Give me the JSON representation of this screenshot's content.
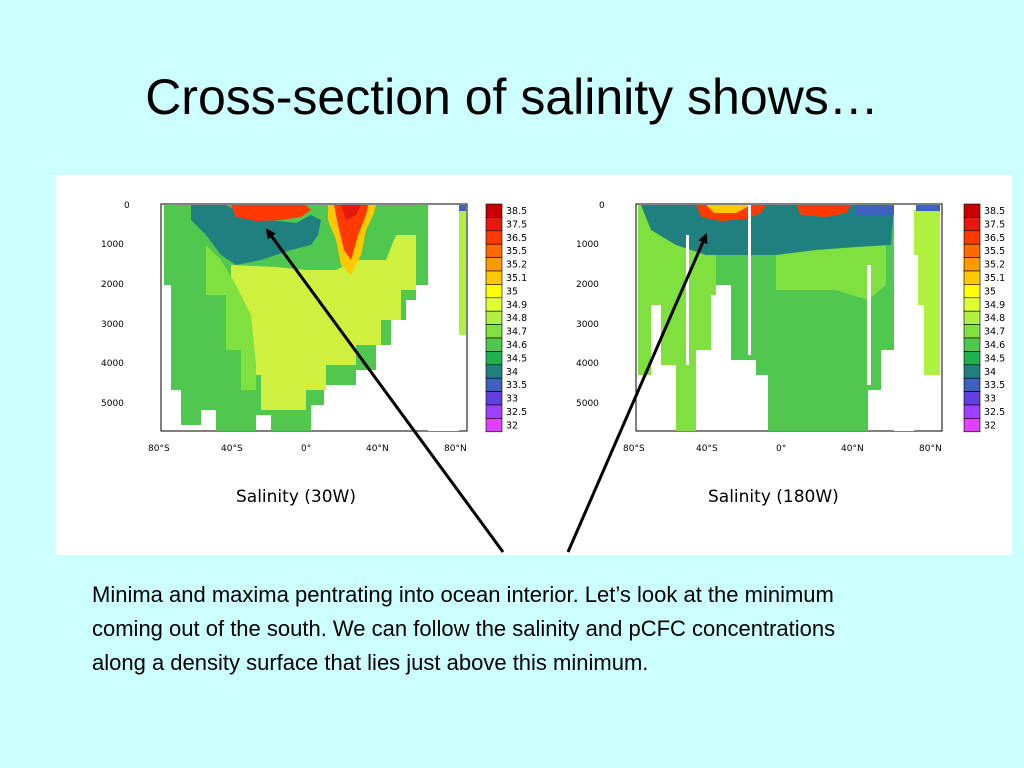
{
  "slide": {
    "title": "Cross-section of salinity shows…",
    "body": "Minima and maxima pentrating into ocean interior. Let’s look at the minimum coming out of the south. We can follow the salinity and pCFC concentrations along a density surface that lies just above this minimum."
  },
  "chart_data": [
    {
      "type": "heatmap",
      "title": "Salinity (30W)",
      "x_ticks": [
        "80°S",
        "40°S",
        "0°",
        "40°N",
        "80°N"
      ],
      "y_ticks": [
        "0",
        "1000",
        "2000",
        "3000",
        "4000",
        "5000"
      ],
      "ylim": [
        0,
        5600
      ],
      "colorbar": {
        "labels": [
          "38.5",
          "37.5",
          "36.5",
          "35.5",
          "35.2",
          "35.1",
          "35",
          "34.9",
          "34.8",
          "34.7",
          "34.6",
          "34.5",
          "34",
          "33.5",
          "33",
          "32.5",
          "32"
        ],
        "colors": [
          "#c80000",
          "#e81810",
          "#ff3a00",
          "#ff6a00",
          "#ff9a00",
          "#ffc800",
          "#ffff00",
          "#e0ff30",
          "#b0f040",
          "#80e040",
          "#50c850",
          "#20b050",
          "#208080",
          "#4060c0",
          "#6040e0",
          "#a040ff",
          "#e040ff"
        ]
      }
    },
    {
      "type": "heatmap",
      "title": "Salinity (180W)",
      "x_ticks": [
        "80°S",
        "40°S",
        "0°",
        "40°N",
        "80°N"
      ],
      "y_ticks": [
        "0",
        "1000",
        "2000",
        "3000",
        "4000",
        "5000"
      ],
      "ylim": [
        0,
        5600
      ],
      "colorbar": {
        "labels": [
          "38.5",
          "37.5",
          "36.5",
          "35.5",
          "35.2",
          "35.1",
          "35",
          "34.9",
          "34.8",
          "34.7",
          "34.6",
          "34.5",
          "34",
          "33.5",
          "33",
          "32.5",
          "32"
        ],
        "colors": [
          "#c80000",
          "#e81810",
          "#ff3a00",
          "#ff6a00",
          "#ff9a00",
          "#ffc800",
          "#ffff00",
          "#e0ff30",
          "#b0f040",
          "#80e040",
          "#50c850",
          "#20b050",
          "#208080",
          "#4060c0",
          "#6040e0",
          "#a040ff",
          "#e040ff"
        ]
      }
    }
  ]
}
